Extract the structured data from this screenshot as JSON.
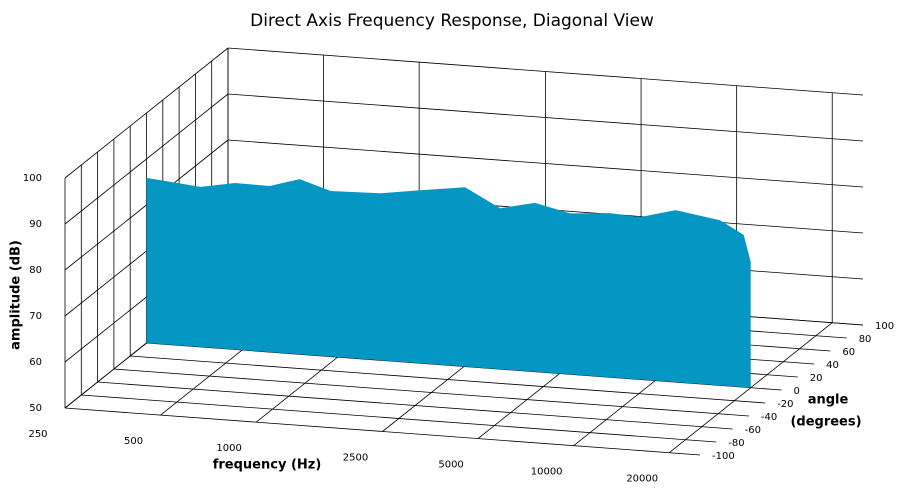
{
  "chart_data": {
    "type": "waterfall3d",
    "title": "Direct Axis Frequency Response, Diagonal View",
    "xlabel": "frequency (Hz)",
    "ylabel": "amplitude (dB)",
    "zlabel": [
      "angle",
      "(degrees)"
    ],
    "xscale": "log",
    "xlim": [
      250,
      25000
    ],
    "xticks": [
      250,
      500,
      1000,
      2500,
      5000,
      10000,
      20000
    ],
    "ylim": [
      50,
      100
    ],
    "yticks": [
      50,
      60,
      70,
      80,
      90,
      100
    ],
    "zlim": [
      -100,
      100
    ],
    "zticks": [
      -100,
      -80,
      -60,
      -40,
      -20,
      0,
      20,
      40,
      60,
      80,
      100
    ],
    "slice_angle": 0,
    "color": "#0497c4",
    "grid": true,
    "x": [
      250,
      370,
      475,
      610,
      760,
      950,
      1360,
      1820,
      2520,
      3250,
      4180,
      5400,
      7200,
      8950,
      11600,
      16000,
      19000,
      20000
    ],
    "values": [
      85.9,
      84.8,
      86.2,
      86.1,
      88.1,
      86.0,
      86.3,
      87.6,
      89.0,
      85.0,
      86.7,
      85.0,
      85.7,
      85.3,
      87.4,
      85.9,
      83.1,
      77.4
    ]
  }
}
